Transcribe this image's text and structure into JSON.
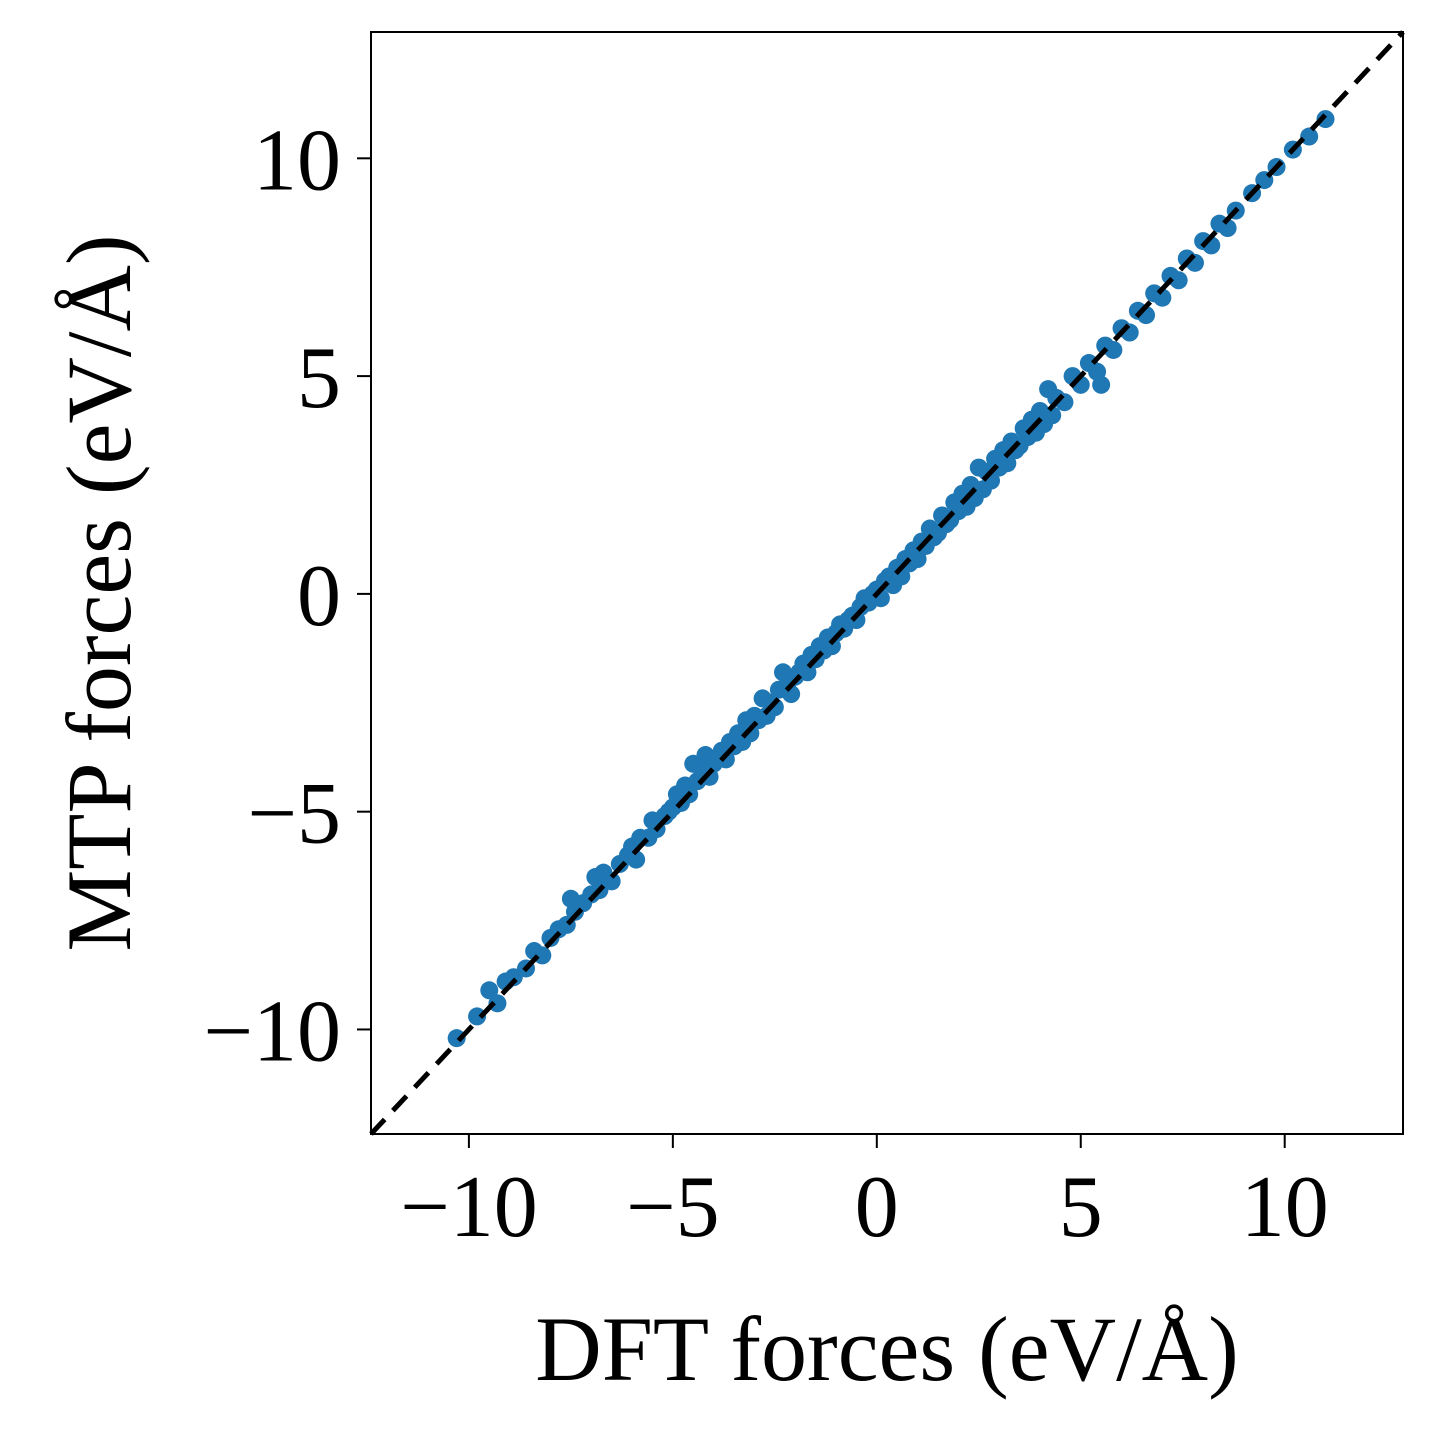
{
  "chart_data": {
    "type": "scatter",
    "title": "",
    "xlabel": "DFT forces (eV/Å)",
    "ylabel": "MTP forces (eV/Å)",
    "xlim": [
      -12.4,
      12.9
    ],
    "ylim": [
      -12.4,
      12.9
    ],
    "xticks": [
      -10,
      -5,
      0,
      5,
      10
    ],
    "yticks": [
      -10,
      -5,
      0,
      5,
      10
    ],
    "xtick_labels": [
      "−10",
      "−5",
      "0",
      "5",
      "10"
    ],
    "ytick_labels": [
      "−10",
      "−5",
      "0",
      "5",
      "10"
    ],
    "grid": false,
    "legend": "none",
    "point_color": "#1f77b4",
    "reference_line": {
      "style": "dashed",
      "color": "#000000",
      "x": [
        -12.4,
        12.9
      ],
      "y": [
        -12.4,
        12.9
      ]
    },
    "series": [
      {
        "points": [
          [
            -10.3,
            -10.2
          ],
          [
            -9.8,
            -9.7
          ],
          [
            -9.5,
            -9.1
          ],
          [
            -9.3,
            -9.4
          ],
          [
            -9.1,
            -8.9
          ],
          [
            -8.9,
            -8.8
          ],
          [
            -8.6,
            -8.6
          ],
          [
            -8.4,
            -8.2
          ],
          [
            -8.2,
            -8.3
          ],
          [
            -8.0,
            -7.9
          ],
          [
            -7.8,
            -7.7
          ],
          [
            -7.6,
            -7.6
          ],
          [
            -7.5,
            -7.0
          ],
          [
            -7.4,
            -7.3
          ],
          [
            -7.2,
            -7.1
          ],
          [
            -7.0,
            -6.9
          ],
          [
            -6.9,
            -6.5
          ],
          [
            -6.8,
            -6.8
          ],
          [
            -6.7,
            -6.4
          ],
          [
            -6.5,
            -6.6
          ],
          [
            -6.3,
            -6.2
          ],
          [
            -6.1,
            -6.0
          ],
          [
            -6.0,
            -5.8
          ],
          [
            -5.9,
            -6.1
          ],
          [
            -5.8,
            -5.6
          ],
          [
            -5.6,
            -5.6
          ],
          [
            -5.5,
            -5.2
          ],
          [
            -5.4,
            -5.4
          ],
          [
            -5.2,
            -5.1
          ],
          [
            -5.1,
            -5.0
          ],
          [
            -5.0,
            -4.9
          ],
          [
            -4.9,
            -4.6
          ],
          [
            -4.8,
            -4.8
          ],
          [
            -4.7,
            -4.4
          ],
          [
            -4.6,
            -4.6
          ],
          [
            -4.5,
            -3.9
          ],
          [
            -4.4,
            -4.3
          ],
          [
            -4.3,
            -4.0
          ],
          [
            -4.2,
            -3.7
          ],
          [
            -4.1,
            -4.2
          ],
          [
            -4.0,
            -3.9
          ],
          [
            -3.9,
            -3.8
          ],
          [
            -3.8,
            -3.6
          ],
          [
            -3.7,
            -3.8
          ],
          [
            -3.6,
            -3.4
          ],
          [
            -3.5,
            -3.5
          ],
          [
            -3.4,
            -3.2
          ],
          [
            -3.3,
            -3.4
          ],
          [
            -3.2,
            -2.9
          ],
          [
            -3.1,
            -3.2
          ],
          [
            -3.0,
            -2.8
          ],
          [
            -2.9,
            -2.9
          ],
          [
            -2.8,
            -2.4
          ],
          [
            -2.7,
            -2.8
          ],
          [
            -2.6,
            -2.5
          ],
          [
            -2.5,
            -2.6
          ],
          [
            -2.4,
            -2.2
          ],
          [
            -2.3,
            -1.8
          ],
          [
            -2.2,
            -2.1
          ],
          [
            -2.1,
            -2.3
          ],
          [
            -2.0,
            -1.9
          ],
          [
            -1.9,
            -1.8
          ],
          [
            -1.8,
            -1.6
          ],
          [
            -1.7,
            -1.8
          ],
          [
            -1.6,
            -1.4
          ],
          [
            -1.5,
            -1.5
          ],
          [
            -1.4,
            -1.2
          ],
          [
            -1.3,
            -1.3
          ],
          [
            -1.2,
            -1.0
          ],
          [
            -1.1,
            -1.2
          ],
          [
            -1.0,
            -0.9
          ],
          [
            -0.9,
            -0.7
          ],
          [
            -0.8,
            -0.8
          ],
          [
            -0.7,
            -0.6
          ],
          [
            -0.6,
            -0.5
          ],
          [
            -0.5,
            -0.6
          ],
          [
            -0.4,
            -0.3
          ],
          [
            -0.3,
            -0.1
          ],
          [
            -0.2,
            -0.2
          ],
          [
            -0.1,
            0.0
          ],
          [
            0.0,
            0.1
          ],
          [
            0.1,
            -0.1
          ],
          [
            0.2,
            0.3
          ],
          [
            0.3,
            0.4
          ],
          [
            0.4,
            0.2
          ],
          [
            0.5,
            0.6
          ],
          [
            0.6,
            0.4
          ],
          [
            0.7,
            0.8
          ],
          [
            0.8,
            0.7
          ],
          [
            0.9,
            1.0
          ],
          [
            1.0,
            0.8
          ],
          [
            1.1,
            1.2
          ],
          [
            1.2,
            1.1
          ],
          [
            1.3,
            1.5
          ],
          [
            1.4,
            1.3
          ],
          [
            1.5,
            1.4
          ],
          [
            1.6,
            1.8
          ],
          [
            1.7,
            1.6
          ],
          [
            1.8,
            1.7
          ],
          [
            1.9,
            2.1
          ],
          [
            2.0,
            1.9
          ],
          [
            2.1,
            2.3
          ],
          [
            2.2,
            2.0
          ],
          [
            2.3,
            2.5
          ],
          [
            2.4,
            2.2
          ],
          [
            2.5,
            2.9
          ],
          [
            2.6,
            2.4
          ],
          [
            2.7,
            2.8
          ],
          [
            2.8,
            2.6
          ],
          [
            2.9,
            3.1
          ],
          [
            3.0,
            2.9
          ],
          [
            3.1,
            3.3
          ],
          [
            3.2,
            3.0
          ],
          [
            3.3,
            3.5
          ],
          [
            3.4,
            3.3
          ],
          [
            3.5,
            3.4
          ],
          [
            3.6,
            3.8
          ],
          [
            3.7,
            3.6
          ],
          [
            3.8,
            4.0
          ],
          [
            3.9,
            3.7
          ],
          [
            4.0,
            4.2
          ],
          [
            4.1,
            3.9
          ],
          [
            4.2,
            4.7
          ],
          [
            4.3,
            4.1
          ],
          [
            4.4,
            4.5
          ],
          [
            4.6,
            4.4
          ],
          [
            4.8,
            5.0
          ],
          [
            5.0,
            4.8
          ],
          [
            5.2,
            5.3
          ],
          [
            5.4,
            5.1
          ],
          [
            5.5,
            4.8
          ],
          [
            5.6,
            5.7
          ],
          [
            5.8,
            5.6
          ],
          [
            6.0,
            6.1
          ],
          [
            6.2,
            6.0
          ],
          [
            6.4,
            6.5
          ],
          [
            6.6,
            6.4
          ],
          [
            6.8,
            6.9
          ],
          [
            7.0,
            6.8
          ],
          [
            7.2,
            7.3
          ],
          [
            7.4,
            7.2
          ],
          [
            7.6,
            7.7
          ],
          [
            7.8,
            7.6
          ],
          [
            8.0,
            8.1
          ],
          [
            8.2,
            8.0
          ],
          [
            8.4,
            8.5
          ],
          [
            8.6,
            8.4
          ],
          [
            8.8,
            8.8
          ],
          [
            9.2,
            9.2
          ],
          [
            9.5,
            9.5
          ],
          [
            9.8,
            9.8
          ],
          [
            10.2,
            10.2
          ],
          [
            10.6,
            10.5
          ],
          [
            11.0,
            10.9
          ]
        ]
      }
    ]
  }
}
